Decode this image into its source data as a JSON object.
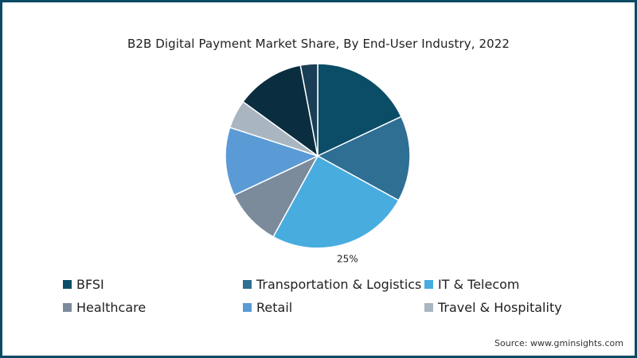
{
  "chart_data": {
    "type": "pie",
    "title": "B2B Digital Payment Market Share, By End-User Industry, 2022",
    "categories": [
      "BFSI",
      "Transportation & Logistics",
      "IT & Telecom",
      "Healthcare",
      "Retail",
      "Travel & Hospitality"
    ],
    "slices": [
      {
        "label": "BFSI",
        "value": 18,
        "color": "#0b4d66"
      },
      {
        "label": "Transportation & Logistics",
        "value": 15,
        "color": "#2e6f93"
      },
      {
        "label": "IT & Telecom",
        "value": 25,
        "color": "#48acdf"
      },
      {
        "label": "Healthcare",
        "value": 10,
        "color": "#7b8b9c"
      },
      {
        "label": "Retail",
        "value": 12,
        "color": "#5b9bd5"
      },
      {
        "label": "Travel & Hospitality",
        "value": 5,
        "color": "#a9b6c2"
      },
      {
        "label": "",
        "value": 12,
        "color": "#0a2d40"
      },
      {
        "label": "",
        "value": 3,
        "color": "#1a3e55"
      }
    ],
    "data_labels": [
      {
        "slice": 2,
        "text": "25%"
      }
    ],
    "legend": {
      "placement": "bottom",
      "entries": [
        {
          "label": "BFSI",
          "color": "#0b4d66"
        },
        {
          "label": "Transportation & Logistics",
          "color": "#2e6f93"
        },
        {
          "label": "IT & Telecom",
          "color": "#48acdf"
        },
        {
          "label": "Healthcare",
          "color": "#7b8b9c"
        },
        {
          "label": "Retail",
          "color": "#5b9bd5"
        },
        {
          "label": "Travel & Hospitality",
          "color": "#a9b6c2"
        }
      ]
    }
  },
  "source": "Source: www.gminsights.com",
  "colors": {
    "border": "#0b4a63",
    "background": "#ffffff"
  }
}
